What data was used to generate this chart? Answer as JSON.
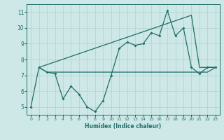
{
  "xlabel": "Humidex (Indice chaleur)",
  "bg_color": "#cde8e6",
  "grid_color": "#b0d0ce",
  "line_color": "#1e6e6a",
  "xlim": [
    -0.5,
    23.5
  ],
  "ylim": [
    4.5,
    11.5
  ],
  "yticks": [
    5,
    6,
    7,
    8,
    9,
    10,
    11
  ],
  "xticks": [
    0,
    1,
    2,
    3,
    4,
    5,
    6,
    7,
    8,
    9,
    10,
    11,
    12,
    13,
    14,
    15,
    16,
    17,
    18,
    19,
    20,
    21,
    22,
    23
  ],
  "jagged_x": [
    0,
    1,
    2,
    3,
    4,
    5,
    6,
    7,
    8,
    9,
    10,
    11,
    12,
    13,
    14,
    15,
    16,
    17,
    18,
    19,
    20,
    21,
    22,
    23
  ],
  "jagged_y": [
    5.0,
    7.5,
    7.2,
    7.1,
    5.5,
    6.3,
    5.8,
    5.0,
    4.7,
    5.4,
    7.0,
    8.7,
    9.1,
    8.9,
    9.0,
    9.7,
    9.5,
    11.1,
    9.5,
    10.0,
    7.5,
    7.1,
    7.5,
    7.5
  ],
  "flat_x": [
    1,
    2,
    3,
    4,
    5,
    6,
    7,
    8,
    9,
    10,
    11,
    12,
    13,
    14,
    15,
    16,
    17,
    18,
    19,
    20,
    21,
    22,
    23
  ],
  "flat_y": [
    7.5,
    7.2,
    7.2,
    7.2,
    7.2,
    7.2,
    7.2,
    7.2,
    7.2,
    7.2,
    7.2,
    7.2,
    7.2,
    7.2,
    7.2,
    7.2,
    7.2,
    7.2,
    7.2,
    7.2,
    7.2,
    7.2,
    7.5
  ],
  "diag_x": [
    1,
    20,
    21,
    22,
    23
  ],
  "diag_y": [
    7.5,
    10.8,
    7.5,
    7.5,
    7.5
  ]
}
